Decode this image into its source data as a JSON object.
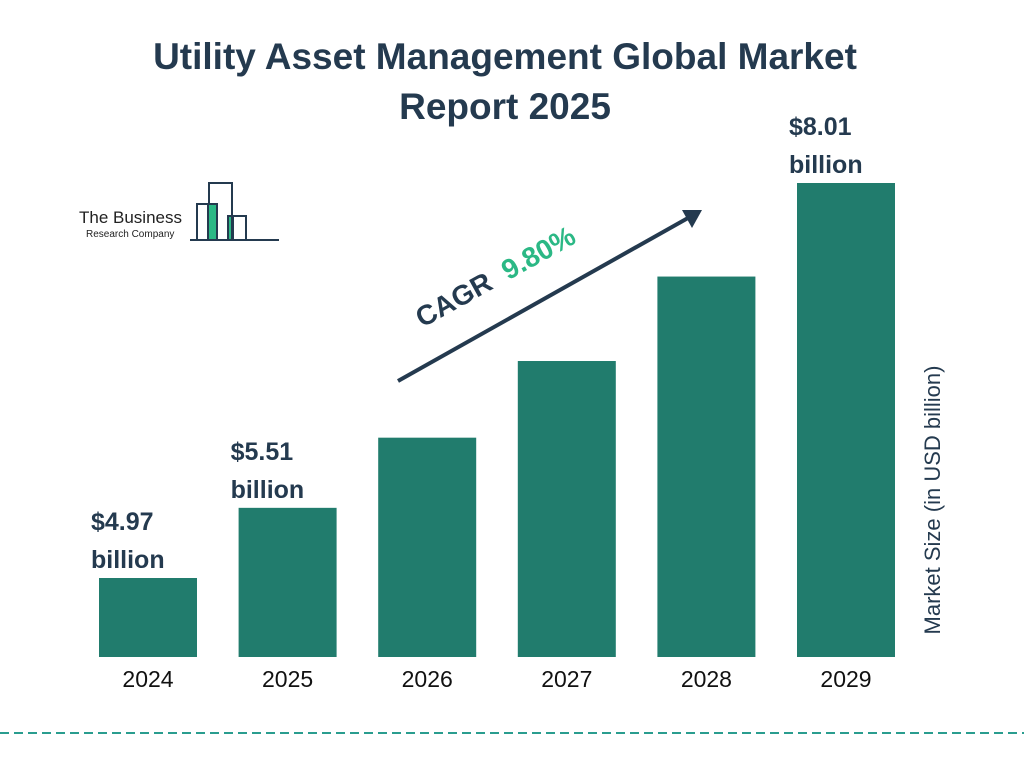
{
  "chart_data": {
    "type": "bar",
    "title": "Utility Asset Management Global Market Report 2025",
    "categories": [
      "2024",
      "2025",
      "2026",
      "2027",
      "2028",
      "2029"
    ],
    "values": [
      4.97,
      5.51,
      6.05,
      6.64,
      7.29,
      8.01
    ],
    "data_labels": [
      {
        "year": "2024",
        "line1": "$4.97",
        "line2": "billion"
      },
      {
        "year": "2025",
        "line1": "$5.51",
        "line2": "billion"
      },
      {
        "year": "2029",
        "line1": "$8.01",
        "line2": "billion"
      }
    ],
    "ylabel": "Market Size (in USD billion)",
    "xlabel": "",
    "grid": false,
    "annotation": {
      "prefix": "CAGR",
      "value": "9.80%"
    },
    "colors": {
      "bar": "#217c6d",
      "title": "#243a4f",
      "cagr": "#2bb885",
      "dash": "#2a9d8f"
    }
  },
  "logo": {
    "line1": "The Business",
    "line2": "Research Company"
  }
}
